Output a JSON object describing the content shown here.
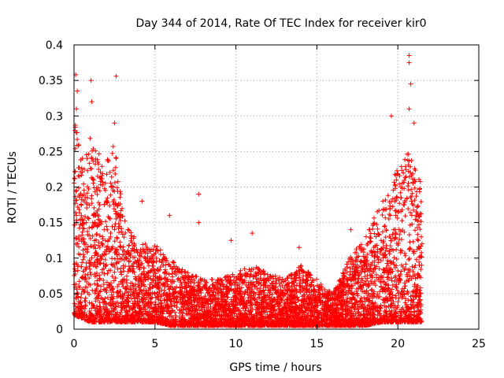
{
  "colors": {
    "series": "#ff0000",
    "axis": "#000000",
    "grid": "#a0a0a0",
    "background": "#ffffff"
  },
  "chart_data": {
    "type": "scatter",
    "title": "Day 344 of 2014, Rate Of TEC Index for receiver kir0",
    "xlabel": "GPS time / hours",
    "ylabel": "ROTI / TECUs",
    "xlim": [
      0,
      25
    ],
    "ylim": [
      0,
      0.4
    ],
    "grid": true,
    "marker": "+",
    "xticks": [
      0,
      5,
      10,
      15,
      20,
      25
    ],
    "xtick_labels": [
      "0",
      "5",
      "10",
      "15",
      "20",
      "25"
    ],
    "yticks": [
      0,
      0.05,
      0.1,
      0.15,
      0.2,
      0.25,
      0.3,
      0.35,
      0.4
    ],
    "ytick_labels": [
      "0",
      "0.05",
      "0.1",
      "0.15",
      "0.2",
      "0.25",
      "0.3",
      "0.35",
      "0.4"
    ],
    "series": [
      {
        "name": "kir0",
        "notable_points": [
          {
            "x": 0.1,
            "y": 0.358
          },
          {
            "x": 0.2,
            "y": 0.335
          },
          {
            "x": 0.15,
            "y": 0.31
          },
          {
            "x": 1.05,
            "y": 0.35
          },
          {
            "x": 1.1,
            "y": 0.32
          },
          {
            "x": 2.6,
            "y": 0.356
          },
          {
            "x": 2.5,
            "y": 0.29
          },
          {
            "x": 4.2,
            "y": 0.18
          },
          {
            "x": 5.9,
            "y": 0.16
          },
          {
            "x": 7.7,
            "y": 0.19
          },
          {
            "x": 7.7,
            "y": 0.15
          },
          {
            "x": 9.7,
            "y": 0.125
          },
          {
            "x": 11.0,
            "y": 0.135
          },
          {
            "x": 13.9,
            "y": 0.115
          },
          {
            "x": 17.1,
            "y": 0.14
          },
          {
            "x": 19.6,
            "y": 0.3
          },
          {
            "x": 20.7,
            "y": 0.385
          },
          {
            "x": 20.7,
            "y": 0.375
          },
          {
            "x": 20.8,
            "y": 0.345
          },
          {
            "x": 20.7,
            "y": 0.31
          },
          {
            "x": 21.0,
            "y": 0.29
          }
        ],
        "density_envelope": [
          {
            "x": 0.0,
            "low": 0.02,
            "high": 0.3
          },
          {
            "x": 0.5,
            "low": 0.015,
            "high": 0.24
          },
          {
            "x": 1.0,
            "low": 0.01,
            "high": 0.27
          },
          {
            "x": 1.5,
            "low": 0.01,
            "high": 0.25
          },
          {
            "x": 2.0,
            "low": 0.01,
            "high": 0.24
          },
          {
            "x": 2.5,
            "low": 0.01,
            "high": 0.27
          },
          {
            "x": 3.0,
            "low": 0.01,
            "high": 0.17
          },
          {
            "x": 3.5,
            "low": 0.01,
            "high": 0.14
          },
          {
            "x": 4.0,
            "low": 0.01,
            "high": 0.12
          },
          {
            "x": 5.0,
            "low": 0.01,
            "high": 0.12
          },
          {
            "x": 6.0,
            "low": 0.005,
            "high": 0.1
          },
          {
            "x": 7.0,
            "low": 0.005,
            "high": 0.08
          },
          {
            "x": 8.0,
            "low": 0.005,
            "high": 0.07
          },
          {
            "x": 9.0,
            "low": 0.005,
            "high": 0.07
          },
          {
            "x": 10.0,
            "low": 0.005,
            "high": 0.08
          },
          {
            "x": 11.0,
            "low": 0.005,
            "high": 0.09
          },
          {
            "x": 12.0,
            "low": 0.005,
            "high": 0.08
          },
          {
            "x": 13.0,
            "low": 0.005,
            "high": 0.07
          },
          {
            "x": 14.0,
            "low": 0.005,
            "high": 0.09
          },
          {
            "x": 15.0,
            "low": 0.005,
            "high": 0.07
          },
          {
            "x": 16.0,
            "low": 0.005,
            "high": 0.05
          },
          {
            "x": 17.0,
            "low": 0.005,
            "high": 0.1
          },
          {
            "x": 18.0,
            "low": 0.005,
            "high": 0.13
          },
          {
            "x": 19.0,
            "low": 0.01,
            "high": 0.18
          },
          {
            "x": 20.0,
            "low": 0.01,
            "high": 0.23
          },
          {
            "x": 20.5,
            "low": 0.01,
            "high": 0.25
          },
          {
            "x": 21.0,
            "low": 0.01,
            "high": 0.24
          },
          {
            "x": 21.5,
            "low": 0.01,
            "high": 0.2
          }
        ]
      }
    ]
  }
}
